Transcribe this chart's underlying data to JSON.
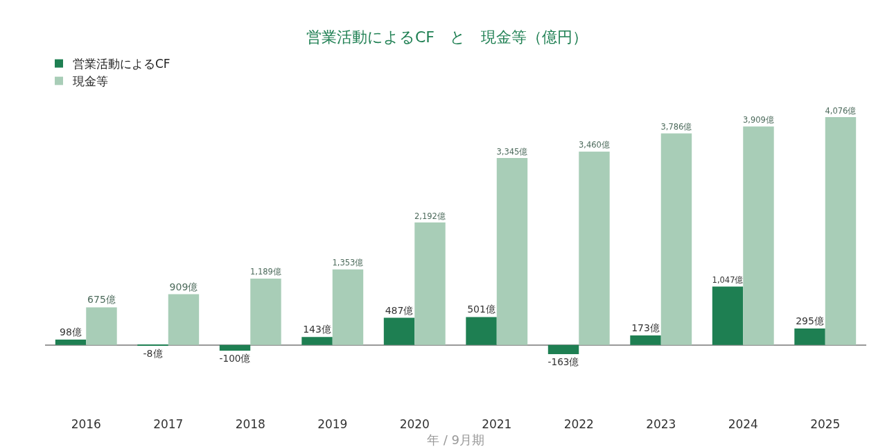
{
  "chart_data": {
    "type": "bar",
    "title": "営業活動によるCF　と　現金等（億円）",
    "xlabel": "年 / 9月期",
    "categories": [
      "2016",
      "2017",
      "2018",
      "2019",
      "2020",
      "2021",
      "2022",
      "2023",
      "2024",
      "2025"
    ],
    "series": [
      {
        "name": "営業活動によるCF",
        "color": "#1e7f52",
        "values": [
          98,
          -8,
          -100,
          143,
          487,
          501,
          -163,
          173,
          1047,
          295
        ],
        "value_labels": [
          "98億",
          "-8億",
          "-100億",
          "143億",
          "487億",
          "501億",
          "-163億",
          "173億",
          "1,047億",
          "295億"
        ]
      },
      {
        "name": "現金等",
        "color": "#a8cdb7",
        "values": [
          675,
          909,
          1189,
          1353,
          2192,
          3345,
          3460,
          3786,
          3909,
          4076
        ],
        "value_labels": [
          "675億",
          "909億",
          "1,189億",
          "1,353億",
          "2,192億",
          "3,345億",
          "3,460億",
          "3,786億",
          "3,909億",
          "4,076億"
        ]
      }
    ],
    "legend": "top left",
    "grid": false
  }
}
